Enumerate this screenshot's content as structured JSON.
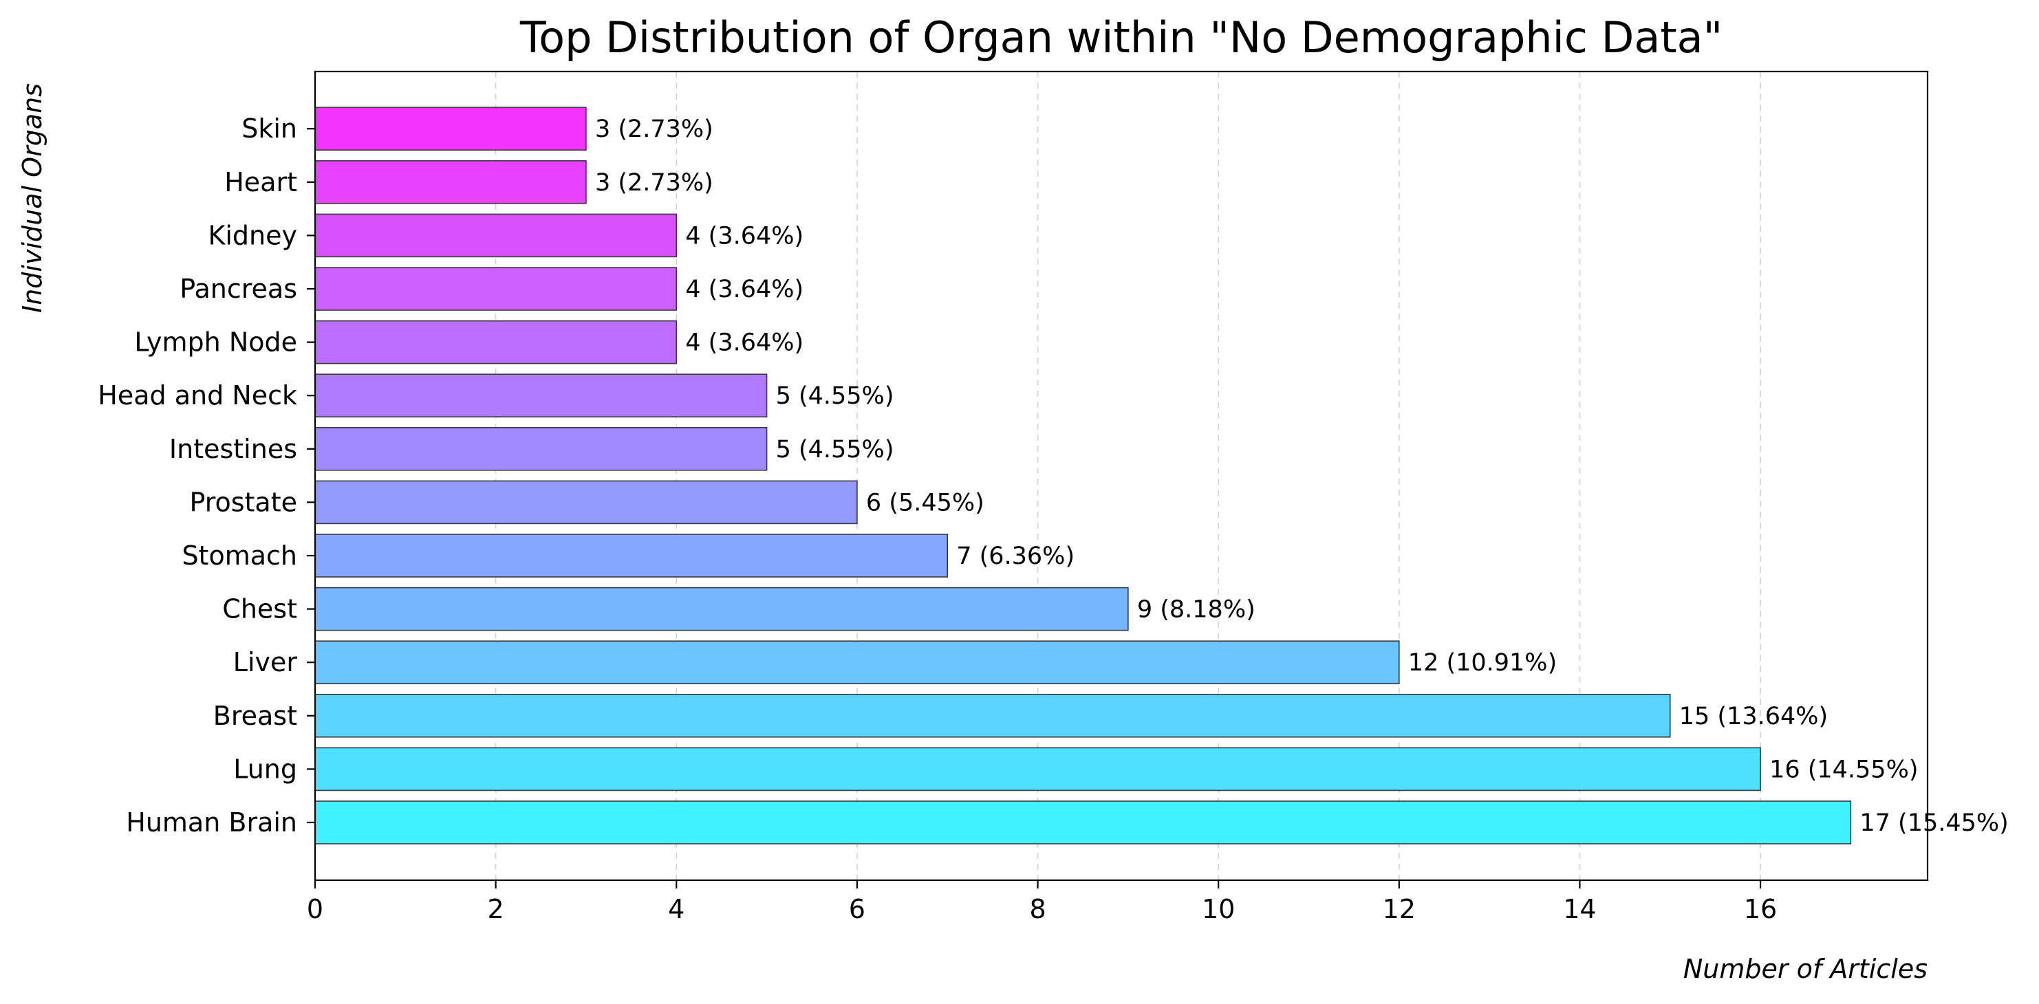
{
  "chart_data": {
    "type": "bar",
    "orientation": "horizontal",
    "title": "Top Distribution of Organ within \"No Demographic Data\"",
    "xlabel": "Number of Articles",
    "ylabel": "Individual Organs",
    "xlim": [
      0,
      17.85
    ],
    "xticks": [
      0,
      2,
      4,
      6,
      8,
      10,
      12,
      14,
      16
    ],
    "grid": "x-dashed",
    "categories": [
      "Human Brain",
      "Lung",
      "Breast",
      "Liver",
      "Chest",
      "Stomach",
      "Prostate",
      "Intestines",
      "Head and Neck",
      "Lymph Node",
      "Pancreas",
      "Kidney",
      "Heart",
      "Skin"
    ],
    "values": [
      17,
      16,
      15,
      12,
      9,
      7,
      6,
      5,
      5,
      4,
      4,
      4,
      3,
      3
    ],
    "data_labels": [
      "17 (15.45%)",
      "16 (14.55%)",
      "15 (13.64%)",
      "12 (10.91%)",
      "9 (8.18%)",
      "7 (6.36%)",
      "6 (5.45%)",
      "5 (4.55%)",
      "5 (4.55%)",
      "4 (3.64%)",
      "4 (3.64%)",
      "4 (3.64%)",
      "3 (2.73%)",
      "3 (2.73%)"
    ],
    "colors": [
      "#40f0ff",
      "#4ee1ff",
      "#5cd3ff",
      "#6ac4ff",
      "#78b6ff",
      "#86a7ff",
      "#9499ff",
      "#a18aff",
      "#af7cff",
      "#bd6dff",
      "#cb5fff",
      "#d950ff",
      "#e742ff",
      "#f533ff"
    ]
  }
}
